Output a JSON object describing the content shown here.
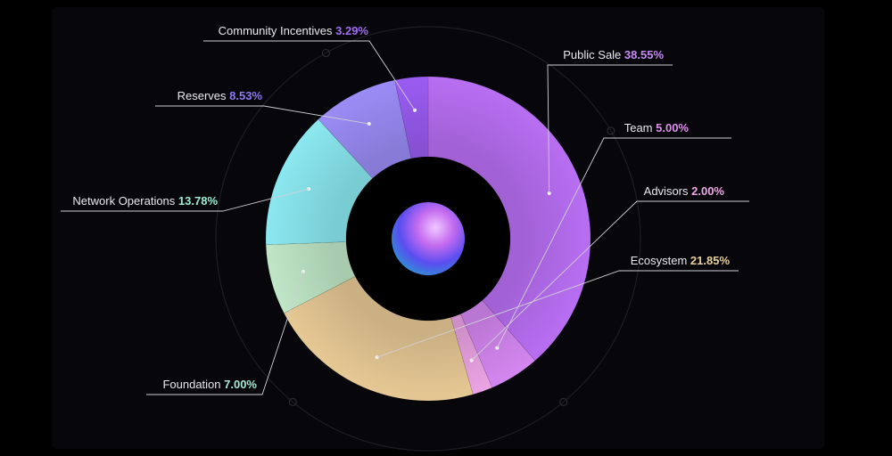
{
  "chart_data": {
    "type": "pie",
    "title": "",
    "slices": [
      {
        "label": "Public Sale",
        "value": 38.55,
        "display": "38.55%",
        "color": "#b86ef2",
        "pct_color": "#c68cf5"
      },
      {
        "label": "Team",
        "value": 5.0,
        "display": "5.00%",
        "color": "#d486f0",
        "pct_color": "#e08ff0"
      },
      {
        "label": "Advisors",
        "value": 2.0,
        "display": "2.00%",
        "color": "#eba3e4",
        "pct_color": "#efa9e6"
      },
      {
        "label": "Ecosystem",
        "value": 21.85,
        "display": "21.85%",
        "color": "#e6c894",
        "pct_color": "#e6cf98"
      },
      {
        "label": "Foundation",
        "value": 7.0,
        "display": "7.00%",
        "color": "#bfe6c6",
        "pct_color": "#a8e8d4"
      },
      {
        "label": "Network Operations",
        "value": 13.78,
        "display": "13.78%",
        "color": "#8be8f0",
        "pct_color": "#9cecd8"
      },
      {
        "label": "Reserves",
        "value": 8.53,
        "display": "8.53%",
        "color": "#9a8cf5",
        "pct_color": "#8f7bf2"
      },
      {
        "label": "Community Incentives",
        "value": 3.29,
        "display": "3.29%",
        "color": "#9a5cf2",
        "pct_color": "#a06cf2"
      }
    ]
  }
}
